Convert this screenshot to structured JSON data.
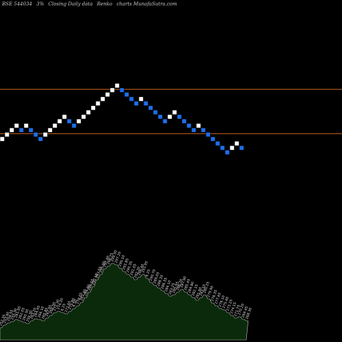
{
  "header": {
    "symbol": "BSE 544034",
    "change": "3%",
    "chart_desc": "Closing Daily data",
    "chart_kind": "Renko",
    "site": "charts MunafaSutra.com"
  },
  "colors": {
    "background": "#000000",
    "up_brick": "#ffffff",
    "down_brick": "#1e6ee8",
    "reference_line": "#c0601e",
    "volume_fill": "#0b2a0b",
    "volume_stroke": "#c8c8c8"
  },
  "chart_data": [
    {
      "type": "renko",
      "bricks": [
        {
          "dir": "up",
          "level": 0
        },
        {
          "dir": "up",
          "level": 1
        },
        {
          "dir": "up",
          "level": 2
        },
        {
          "dir": "up",
          "level": 3
        },
        {
          "dir": "down",
          "level": 2
        },
        {
          "dir": "up",
          "level": 3
        },
        {
          "dir": "down",
          "level": 2
        },
        {
          "dir": "down",
          "level": 1
        },
        {
          "dir": "down",
          "level": 0
        },
        {
          "dir": "up",
          "level": 1
        },
        {
          "dir": "up",
          "level": 2
        },
        {
          "dir": "up",
          "level": 3
        },
        {
          "dir": "up",
          "level": 4
        },
        {
          "dir": "up",
          "level": 5
        },
        {
          "dir": "down",
          "level": 4
        },
        {
          "dir": "down",
          "level": 3
        },
        {
          "dir": "up",
          "level": 4
        },
        {
          "dir": "up",
          "level": 5
        },
        {
          "dir": "up",
          "level": 6
        },
        {
          "dir": "up",
          "level": 7
        },
        {
          "dir": "up",
          "level": 8
        },
        {
          "dir": "up",
          "level": 9
        },
        {
          "dir": "up",
          "level": 10
        },
        {
          "dir": "up",
          "level": 11
        },
        {
          "dir": "up",
          "level": 12
        },
        {
          "dir": "down",
          "level": 11
        },
        {
          "dir": "down",
          "level": 10
        },
        {
          "dir": "down",
          "level": 9
        },
        {
          "dir": "down",
          "level": 8
        },
        {
          "dir": "up",
          "level": 9
        },
        {
          "dir": "down",
          "level": 8
        },
        {
          "dir": "down",
          "level": 7
        },
        {
          "dir": "down",
          "level": 6
        },
        {
          "dir": "down",
          "level": 5
        },
        {
          "dir": "down",
          "level": 4
        },
        {
          "dir": "up",
          "level": 5
        },
        {
          "dir": "up",
          "level": 6
        },
        {
          "dir": "down",
          "level": 5
        },
        {
          "dir": "down",
          "level": 4
        },
        {
          "dir": "down",
          "level": 3
        },
        {
          "dir": "down",
          "level": 2
        },
        {
          "dir": "up",
          "level": 3
        },
        {
          "dir": "down",
          "level": 2
        },
        {
          "dir": "down",
          "level": 1
        },
        {
          "dir": "down",
          "level": 0
        },
        {
          "dir": "down",
          "level": -1
        },
        {
          "dir": "down",
          "level": -2
        },
        {
          "dir": "down",
          "level": -3
        },
        {
          "dir": "up",
          "level": -2
        },
        {
          "dir": "up",
          "level": -1
        },
        {
          "dir": "down",
          "level": -2
        }
      ],
      "reference_lines": [
        {
          "level": 11
        },
        {
          "level": 1
        }
      ]
    },
    {
      "type": "area",
      "values": [
        18,
        22,
        25,
        27,
        30,
        28,
        26,
        24,
        28,
        31,
        30,
        28,
        32,
        36,
        40,
        42,
        40,
        38,
        42,
        46,
        50,
        55,
        62,
        70,
        78,
        88,
        96,
        104,
        108,
        112,
        110,
        105,
        100,
        96,
        92,
        88,
        92,
        96,
        90,
        84,
        80,
        76,
        72,
        68,
        64,
        66,
        70,
        74,
        70,
        66,
        62,
        58,
        62,
        66,
        60,
        54,
        50,
        46,
        44,
        40,
        36,
        32,
        34,
        30,
        28
      ],
      "labels": [
        "252.35",
        "253.40",
        "258.55",
        "255.30",
        "261.95",
        "262.05",
        "260.50",
        "259.30",
        "263.20",
        "264.45",
        "266.10",
        "265.85",
        "267.95",
        "268.50",
        "272.30",
        "274.20",
        "6.25",
        "271.65",
        "275.80",
        "6.50",
        "278.05",
        "281.40",
        "284.90",
        "288.65",
        "290.10",
        "293.55",
        "295.95",
        "297.40",
        "298.75",
        "299.50",
        "297.20",
        "295.10",
        "293.85",
        "290.35",
        "291.05",
        "292.20",
        "294.40",
        "293.95",
        "6.25",
        "290.70",
        "289.05",
        "288.20",
        "286.55",
        "284.10",
        "283.25",
        "285.95",
        "286.70",
        "287.90",
        "285.45",
        "284.80",
        "282.15",
        "281.60",
        "283.10",
        "280.25",
        "279.90",
        "278.35",
        "277.65",
        "276.10",
        "275.40",
        "273.25",
        "274.15",
        "271.75",
        "270.20",
        "269.45",
        "268.30"
      ]
    }
  ]
}
